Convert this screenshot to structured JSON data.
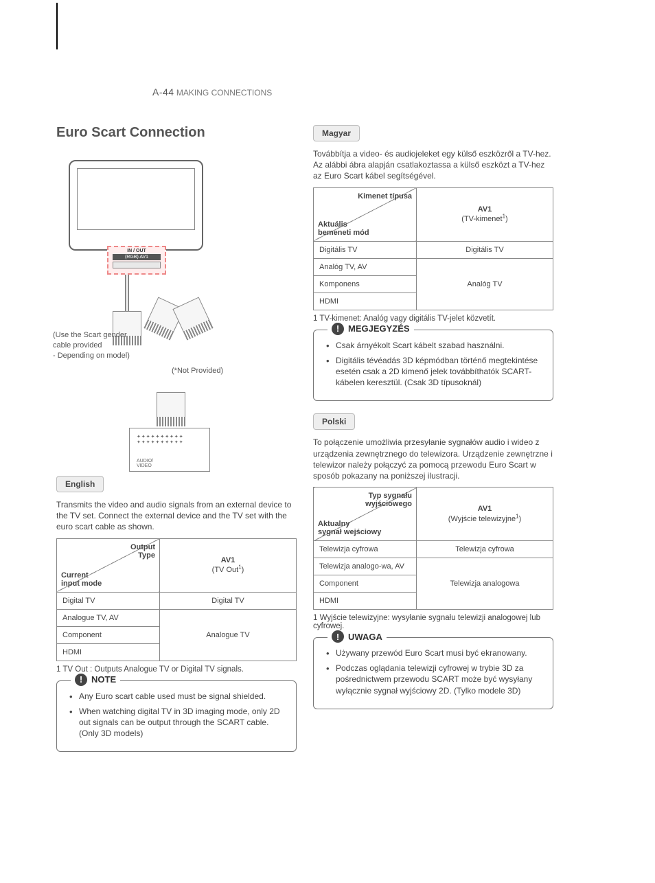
{
  "header": {
    "page": "A-44",
    "section": "MAKING CONNECTIONS"
  },
  "title": "Euro Scart Connection",
  "diagram": {
    "port_io": "IN / OUT",
    "port_av1": "(RGB) AV1",
    "note_gender": "(Use the Scart gender cable provided\n- Depending on model)",
    "note_notprov": "(*Not Provided)",
    "device_grill": "✦✦✦✦✦✦✦✦✦✦\n✦✦✦✦✦✦✦✦✦✦",
    "device_label": "AUDIO/\nVIDEO"
  },
  "languages": [
    {
      "key": "english",
      "tag": "English",
      "intro": "Transmits the video and audio signals from an external device to the TV set. Connect the external device and the TV set with the euro scart cable as shown.",
      "table": {
        "corner_top": "Output\nType",
        "corner_bottom": "Current\ninput mode",
        "col": "AV1",
        "col_sub_pre": "(TV Out",
        "col_sub_post": ")",
        "rows": [
          {
            "mode": "Digital TV",
            "out": "Digital TV",
            "span": 1
          },
          {
            "mode": "Analogue TV, AV",
            "out": "Analogue TV",
            "span": 3
          },
          {
            "mode": "Component"
          },
          {
            "mode": "HDMI"
          }
        ]
      },
      "footnote": "1  TV Out : Outputs Analogue TV or Digital TV signals.",
      "note_title": "NOTE",
      "notes": [
        "Any Euro scart cable used must be signal shielded.",
        "When watching digital TV in 3D imaging mode, only 2D out signals can be output through the SCART cable. (Only 3D models)"
      ]
    },
    {
      "key": "magyar",
      "tag": "Magyar",
      "intro": "Továbbítja a video- és audiojeleket egy külső eszközről a TV-hez. Az alábbi ábra alapján csatlakoztassa a külső eszközt a TV-hez az Euro Scart kábel segítségével.",
      "table": {
        "corner_top": "Kimenet típusa",
        "corner_bottom": "Aktuális\nbemeneti mód",
        "col": "AV1",
        "col_sub_pre": "(TV-kimenet",
        "col_sub_post": ")",
        "rows": [
          {
            "mode": "Digitális TV",
            "out": "Digitális TV",
            "span": 1
          },
          {
            "mode": "Analóg TV, AV",
            "out": "Analóg TV",
            "span": 3
          },
          {
            "mode": "Komponens"
          },
          {
            "mode": "HDMI"
          }
        ]
      },
      "footnote": "1  TV-kimenet: Analóg vagy digitális TV-jelet közvetít.",
      "note_title": "MEGJEGYZÉS",
      "notes": [
        "Csak árnyékolt Scart kábelt szabad használni.",
        "Digitális tévéadás 3D képmódban történő megtekintése esetén csak a 2D kimenő jelek továbbíthatók SCART-kábelen keresztül. (Csak 3D típusoknál)"
      ]
    },
    {
      "key": "polski",
      "tag": "Polski",
      "intro": "To połączenie umożliwia przesyłanie sygnałów audio i wideo z urządzenia zewnętrznego do telewizora. Urządzenie zewnętrzne i telewizor należy połączyć za pomocą przewodu Euro Scart w sposób pokazany na poniższej ilustracji.",
      "table": {
        "corner_top": "Typ sygnału\nwyjściowego",
        "corner_bottom": "Aktualny\nsygnał wejściowy",
        "col": "AV1",
        "col_sub_pre": "(Wyjście telewizyjne",
        "col_sub_post": ")",
        "rows": [
          {
            "mode": "Telewizja cyfrowa",
            "out": "Telewizja cyfrowa",
            "span": 1
          },
          {
            "mode": "Telewizja analogo-wa, AV",
            "out": "Telewizja analogowa",
            "span": 3
          },
          {
            "mode": "Component"
          },
          {
            "mode": "HDMI"
          }
        ]
      },
      "footnote": "1  Wyjście telewizyjne: wysyłanie sygnału telewizji analogowej lub cyfrowej.",
      "note_title": "UWAGA",
      "notes": [
        "Używany przewód Euro Scart musi być ekranowany.",
        "Podczas oglądania telewizji cyfrowej w trybie 3D za pośrednictwem przewodu SCART może być wysyłany wyłącznie sygnał wyjściowy 2D. (Tylko modele 3D)"
      ]
    }
  ]
}
